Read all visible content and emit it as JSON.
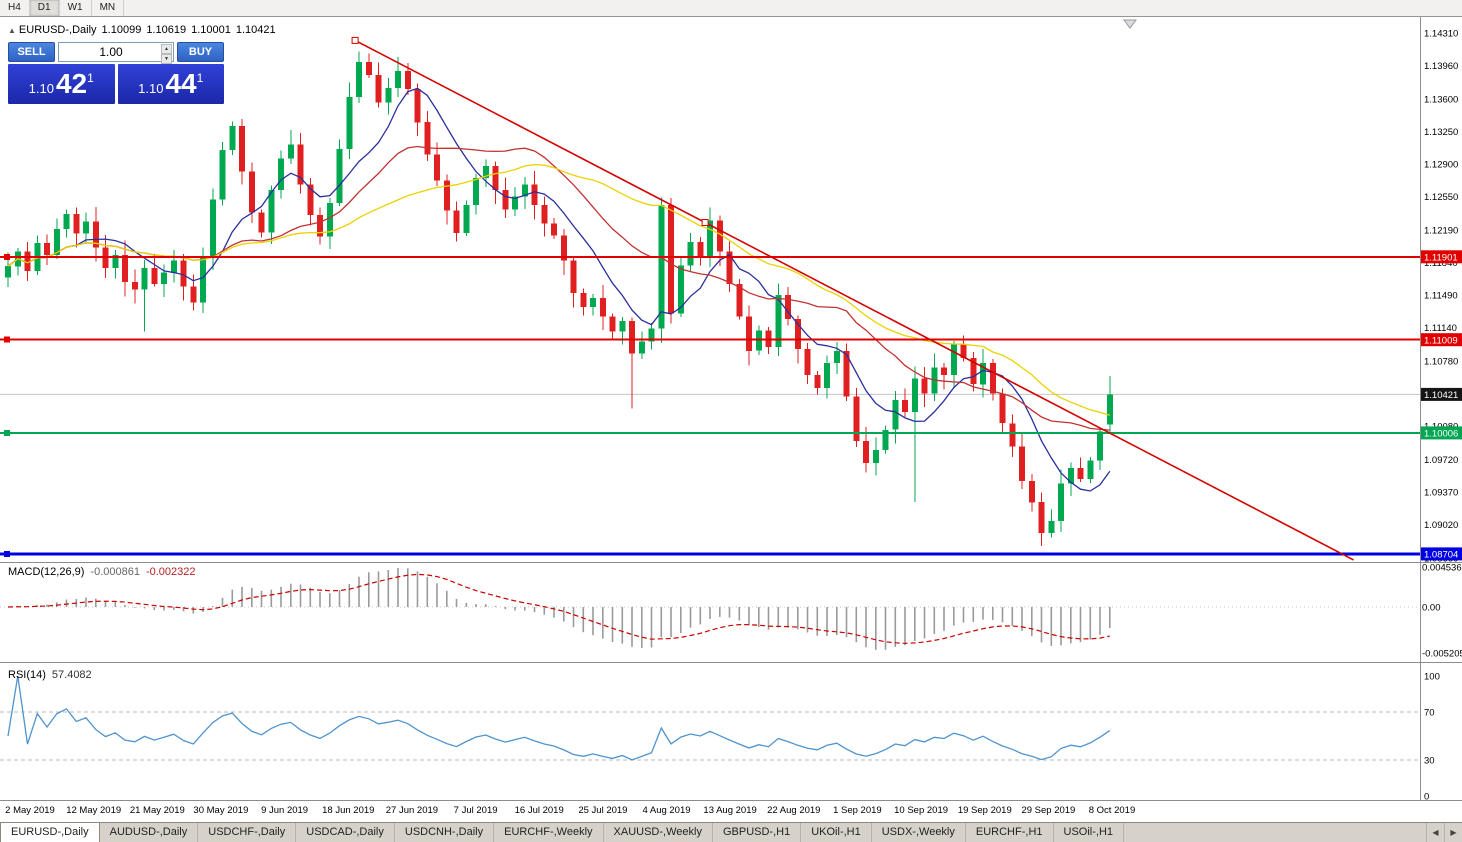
{
  "toolbar": {
    "timeframes": [
      {
        "label": "H4",
        "active": false
      },
      {
        "label": "D1",
        "active": true
      },
      {
        "label": "W1",
        "active": false
      },
      {
        "label": "MN",
        "active": false
      }
    ]
  },
  "info_bar": {
    "symbol": "EURUSD-,Daily",
    "open": "1.10099",
    "high": "1.10619",
    "low": "1.10001",
    "close": "1.10421"
  },
  "trade_panel": {
    "sell_label": "SELL",
    "buy_label": "BUY",
    "volume": "1.00",
    "sell_price": {
      "prefix": "1.10",
      "big": "42",
      "sup": "1"
    },
    "buy_price": {
      "prefix": "1.10",
      "big": "44",
      "sup": "1"
    }
  },
  "chart_data": {
    "type": "candlestick",
    "symbol": "EURUSD-",
    "timeframe": "Daily",
    "closes": [
      1.118,
      1.1196,
      1.1175,
      1.1205,
      1.1192,
      1.122,
      1.1236,
      1.1215,
      1.1228,
      1.12,
      1.1178,
      1.1192,
      1.1163,
      1.1155,
      1.1178,
      1.1161,
      1.1173,
      1.1186,
      1.1158,
      1.1141,
      1.119,
      1.1252,
      1.1305,
      1.1331,
      1.1282,
      1.1238,
      1.1216,
      1.1262,
      1.1296,
      1.1311,
      1.1268,
      1.1235,
      1.1212,
      1.1248,
      1.1306,
      1.1362,
      1.14,
      1.1386,
      1.1356,
      1.1372,
      1.139,
      1.1371,
      1.1335,
      1.13,
      1.1272,
      1.124,
      1.1216,
      1.1246,
      1.1275,
      1.1288,
      1.1262,
      1.1241,
      1.1255,
      1.1268,
      1.1246,
      1.1226,
      1.1213,
      1.1186,
      1.1151,
      1.1136,
      1.1146,
      1.1126,
      1.111,
      1.1121,
      1.1086,
      1.1099,
      1.1113,
      1.1246,
      1.1129,
      1.1181,
      1.1206,
      1.1191,
      1.1229,
      1.1196,
      1.1161,
      1.1126,
      1.1089,
      1.1111,
      1.1093,
      1.1149,
      1.1123,
      1.1091,
      1.1063,
      1.1049,
      1.1076,
      1.1089,
      1.104,
      1.0992,
      1.0968,
      1.0982,
      1.1004,
      1.1036,
      1.1023,
      1.1059,
      1.1043,
      1.1071,
      1.1063,
      1.1096,
      1.1081,
      1.1053,
      1.1076,
      1.1043,
      1.1011,
      1.0986,
      1.0949,
      1.0926,
      1.0893,
      1.0906,
      1.0946,
      1.0963,
      1.0951,
      1.0971,
      1.1002,
      1.10421
    ],
    "wick_overrides": {
      "14": {
        "low": 1.111
      },
      "36": {
        "high": 1.1411
      },
      "64": {
        "low": 1.1027
      },
      "72": {
        "high": 1.1243
      },
      "88": {
        "low": 1.0958
      },
      "93": {
        "low": 1.0926
      },
      "106": {
        "low": 1.0879
      }
    },
    "last_candle": {
      "open": 1.10099,
      "high": 1.10619,
      "low": 1.10001,
      "close": 1.10421
    },
    "price_axis_ticks": [
      "1.14310",
      "1.13960",
      "1.13600",
      "1.13250",
      "1.12900",
      "1.12550",
      "1.12190",
      "1.11840",
      "1.11490",
      "1.11140",
      "1.10780",
      "1.10430",
      "1.10080",
      "1.09720",
      "1.09370",
      "1.09020",
      "1.08660"
    ],
    "levels": [
      {
        "label": "1.11901",
        "price": 1.11901,
        "color": "#e00000",
        "width": 2
      },
      {
        "label": "1.11009",
        "price": 1.11009,
        "color": "#e00000",
        "width": 2
      },
      {
        "label": "1.10006",
        "price": 1.10006,
        "color": "#00a651",
        "width": 2
      },
      {
        "label": "1.08704",
        "price": 1.08704,
        "color": "#0000e0",
        "width": 3
      }
    ],
    "bid_line": {
      "label": "1.10421",
      "price": 1.10421,
      "badge_color": "#151515"
    },
    "trendline": {
      "color": "#d40000",
      "start_index": 35.6,
      "start_price": 1.1423,
      "end_index": 138,
      "end_price": 1.0864,
      "anchor_index": 71.5
    },
    "moving_averages": [
      {
        "period": 8,
        "color": "#2a2f9d"
      },
      {
        "period": 20,
        "color": "#c23232"
      },
      {
        "period": 34,
        "color": "#ecd200"
      }
    ],
    "candle_colors": {
      "bull": "#00a84f",
      "bear": "#e02020"
    },
    "date_labels": [
      "2 May 2019",
      "12 May 2019",
      "21 May 2019",
      "30 May 2019",
      "9 Jun 2019",
      "18 Jun 2019",
      "27 Jun 2019",
      "7 Jul 2019",
      "16 Jul 2019",
      "25 Jul 2019",
      "4 Aug 2019",
      "13 Aug 2019",
      "22 Aug 2019",
      "1 Sep 2019",
      "10 Sep 2019",
      "19 Sep 2019",
      "29 Sep 2019",
      "8 Oct 2019"
    ],
    "indicators": {
      "macd": {
        "label": "MACD(12,26,9)",
        "main_value": "-0.000861",
        "signal_value": "-0.002322",
        "axis": [
          "0.004536",
          "0.00",
          "-0.005205"
        ],
        "fast": 12,
        "slow": 26,
        "signal": 9,
        "bar_color": "#9a9a9a",
        "signal_color": "#cc0000"
      },
      "rsi": {
        "label": "RSI(14)",
        "value": "57.4082",
        "axis": [
          "100",
          "70",
          "30",
          "0"
        ],
        "levels": [
          70,
          30
        ],
        "period": 14,
        "line_color": "#4f94cd"
      }
    }
  },
  "tabs": [
    {
      "label": "EURUSD-,Daily",
      "active": true
    },
    {
      "label": "AUDUSD-,Daily",
      "active": false
    },
    {
      "label": "USDCHF-,Daily",
      "active": false
    },
    {
      "label": "USDCAD-,Daily",
      "active": false
    },
    {
      "label": "USDCNH-,Daily",
      "active": false
    },
    {
      "label": "EURCHF-,Weekly",
      "active": false
    },
    {
      "label": "XAUUSD-,Weekly",
      "active": false
    },
    {
      "label": "GBPUSD-,H1",
      "active": false
    },
    {
      "label": "UKOil-,H1",
      "active": false
    },
    {
      "label": "USDX-,Weekly",
      "active": false
    },
    {
      "label": "EURCHF-,H1",
      "active": false
    },
    {
      "label": "USOil-,H1",
      "active": false
    }
  ]
}
